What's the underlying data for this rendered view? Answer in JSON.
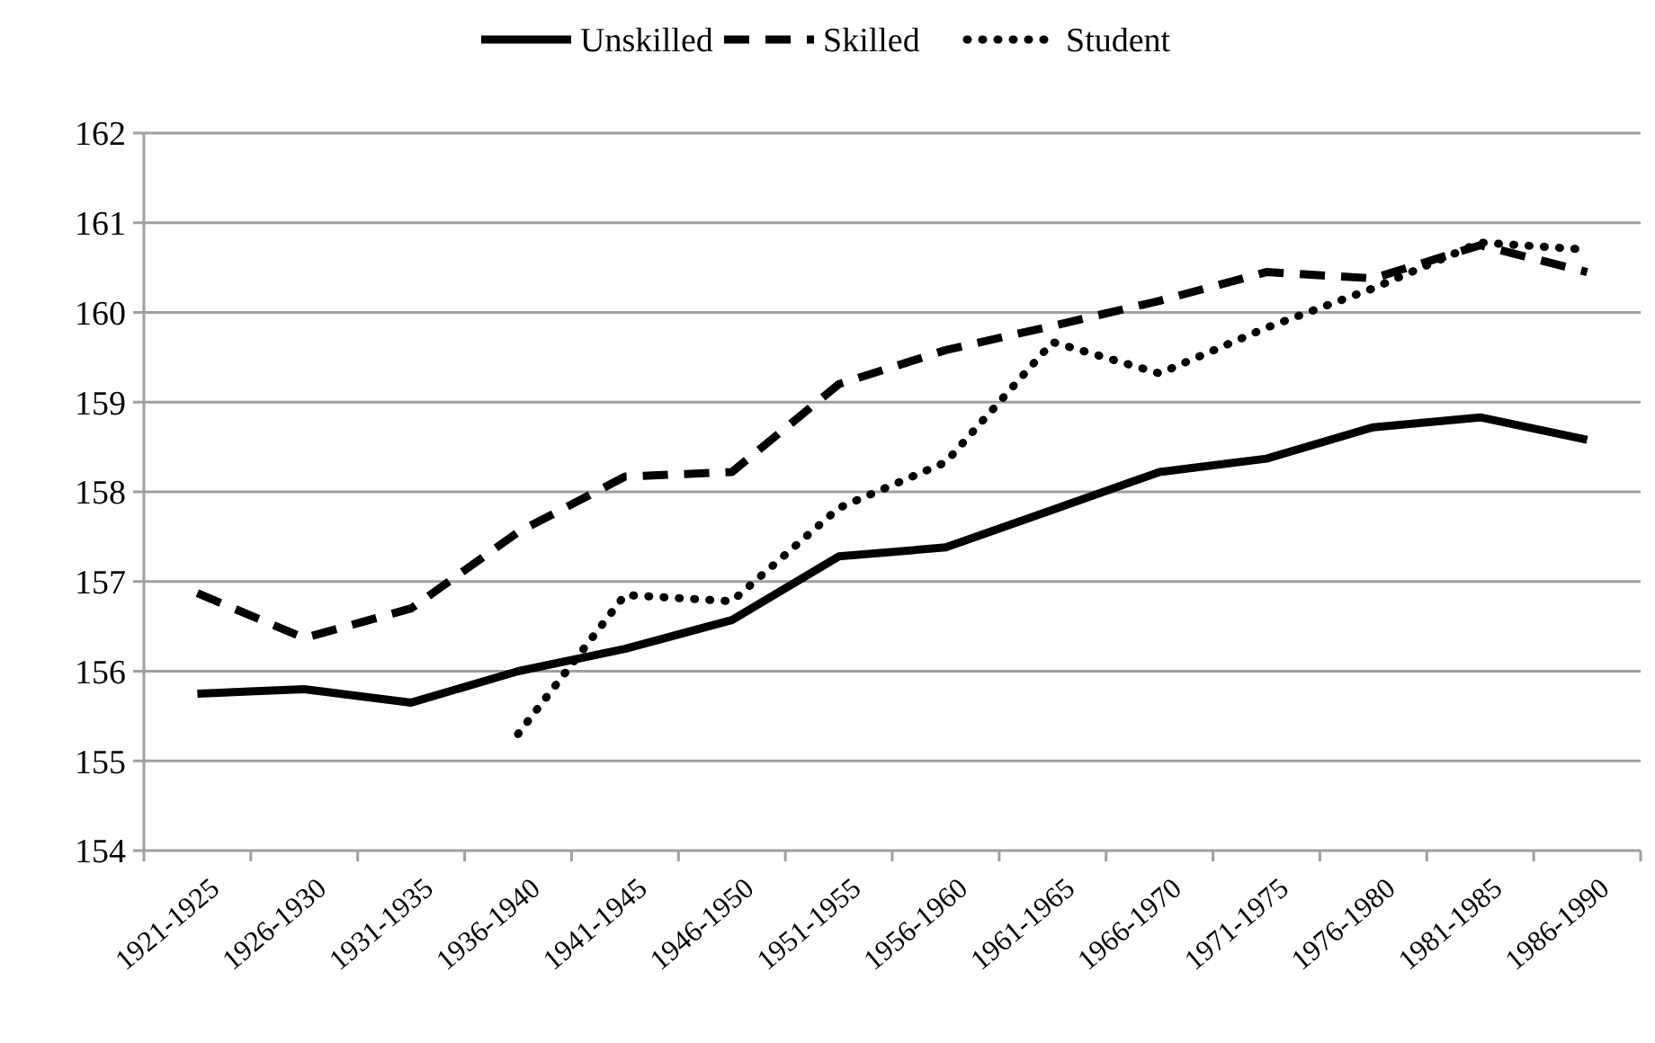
{
  "chart_data": {
    "type": "line",
    "categories": [
      "1921-1925",
      "1926-1930",
      "1931-1935",
      "1936-1940",
      "1941-1945",
      "1946-1950",
      "1951-1955",
      "1956-1960",
      "1961-1965",
      "1966-1970",
      "1971-1975",
      "1976-1980",
      "1981-1985",
      "1986-1990"
    ],
    "series": [
      {
        "name": "Unskilled",
        "color": "#000000",
        "line_style": "solid",
        "values": [
          155.75,
          155.8,
          155.65,
          156.0,
          156.25,
          156.57,
          157.28,
          157.38,
          157.8,
          158.22,
          158.37,
          158.72,
          158.83,
          158.58
        ]
      },
      {
        "name": "Skilled",
        "color": "#000000",
        "line_style": "dashed",
        "values": [
          156.87,
          156.37,
          156.7,
          157.55,
          158.17,
          158.22,
          159.2,
          159.58,
          159.85,
          160.13,
          160.45,
          160.38,
          160.75,
          160.45
        ]
      },
      {
        "name": "Student",
        "color": "#000000",
        "line_style": "dotted",
        "values": [
          null,
          null,
          null,
          155.3,
          156.85,
          156.78,
          157.82,
          158.33,
          159.67,
          159.32,
          159.83,
          160.27,
          160.78,
          160.7
        ]
      }
    ],
    "ylim": [
      154,
      162
    ],
    "yticks": [
      154,
      155,
      156,
      157,
      158,
      159,
      160,
      161,
      162
    ],
    "grid": "y",
    "legend": "top",
    "marker": "none"
  }
}
